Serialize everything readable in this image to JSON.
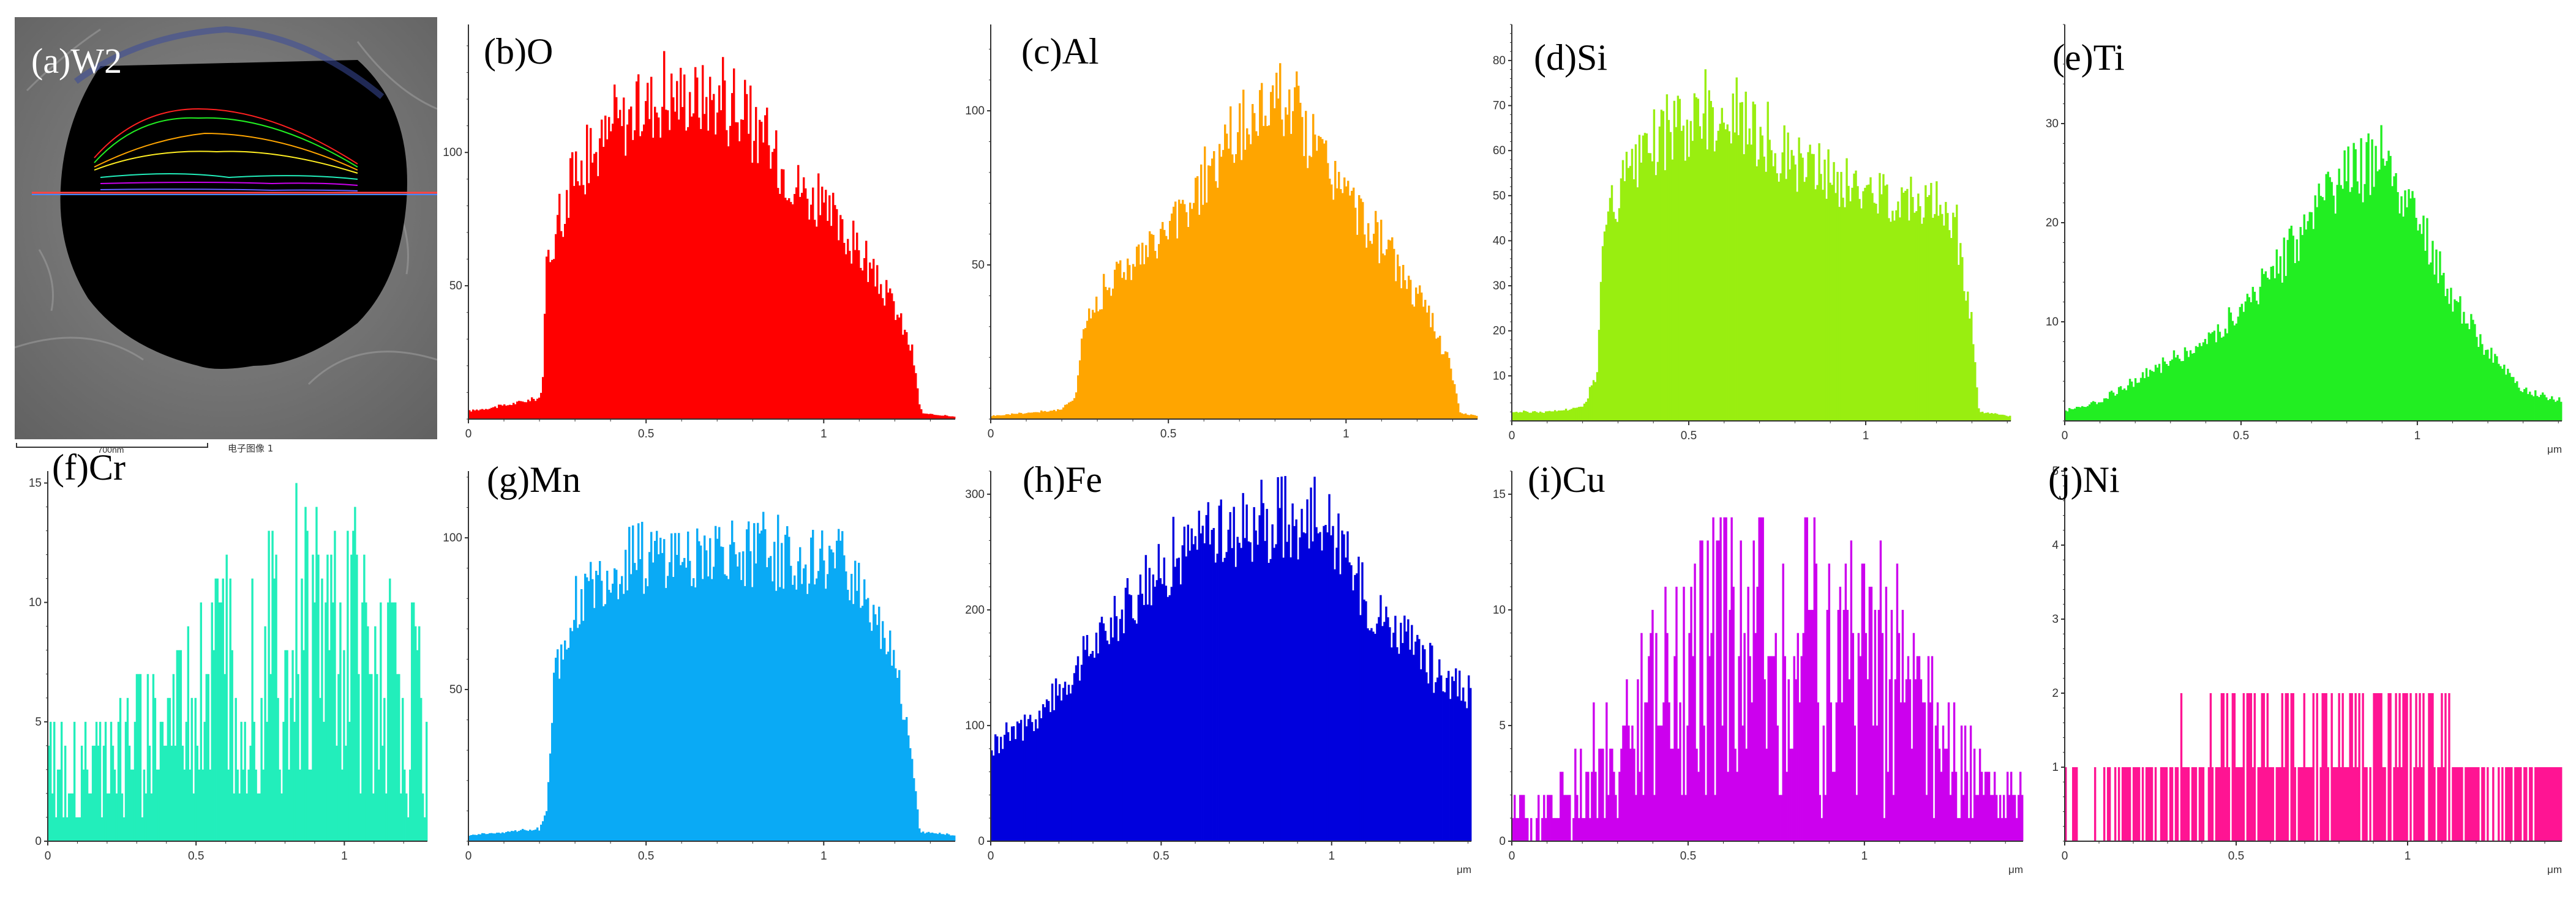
{
  "figure": {
    "sem_panel": {
      "label": "(a)W2",
      "scale_text": "700nm",
      "caption": "电子图像 1"
    }
  },
  "colors": {
    "O": "#ff0000",
    "Al": "#ffa500",
    "Si": "#99ee10",
    "Ti": "#22ee22",
    "Cr": "#22eebb",
    "Mn": "#0aaaf5",
    "Fe": "#0000dd",
    "Cu": "#cc00ee",
    "Ni": "#ff1493"
  },
  "chart_data": [
    {
      "id": "b",
      "label": "(b)O",
      "element": "O",
      "type": "bar",
      "x_unit": "",
      "xlim": [
        0,
        1.37
      ],
      "ylim": [
        0,
        148
      ],
      "x_ticks": [
        0,
        0.5,
        1
      ],
      "y_ticks": [
        50,
        100
      ],
      "x": [
        0,
        0.1,
        0.2,
        0.21,
        0.22,
        0.3,
        0.4,
        0.5,
        0.6,
        0.7,
        0.8,
        0.9,
        1.0,
        1.1,
        1.2,
        1.25,
        1.27,
        1.28,
        1.37
      ],
      "y": [
        3,
        5,
        8,
        15,
        60,
        90,
        108,
        118,
        122,
        120,
        108,
        92,
        78,
        62,
        42,
        25,
        5,
        2,
        1
      ]
    },
    {
      "id": "c",
      "label": "(c)Al",
      "element": "Al",
      "type": "bar",
      "x_unit": "",
      "xlim": [
        0,
        1.37
      ],
      "ylim": [
        0,
        128
      ],
      "x_ticks": [
        0,
        0.5,
        1
      ],
      "y_ticks": [
        50,
        100
      ],
      "x": [
        0,
        0.1,
        0.2,
        0.24,
        0.26,
        0.35,
        0.45,
        0.55,
        0.65,
        0.75,
        0.8,
        0.85,
        0.95,
        1.05,
        1.15,
        1.25,
        1.3,
        1.32,
        1.37
      ],
      "y": [
        1,
        2,
        3,
        8,
        30,
        47,
        55,
        68,
        85,
        98,
        108,
        100,
        82,
        64,
        48,
        30,
        14,
        2,
        1
      ]
    },
    {
      "id": "d",
      "label": "(d)Si",
      "element": "Si",
      "type": "bar",
      "x_unit": "",
      "xlim": [
        0,
        1.41
      ],
      "ylim": [
        0,
        88
      ],
      "x_ticks": [
        0,
        0.5,
        1
      ],
      "y_ticks": [
        10,
        20,
        30,
        40,
        50,
        60,
        70,
        80
      ],
      "x": [
        0,
        0.1,
        0.2,
        0.24,
        0.26,
        0.35,
        0.45,
        0.55,
        0.65,
        0.75,
        0.85,
        0.95,
        1.05,
        1.15,
        1.25,
        1.3,
        1.32,
        1.41
      ],
      "y": [
        2,
        2,
        3,
        10,
        42,
        56,
        64,
        68,
        66,
        60,
        56,
        52,
        50,
        50,
        45,
        22,
        2,
        1
      ]
    },
    {
      "id": "e",
      "label": "(e)Ti",
      "element": "Ti",
      "type": "bar",
      "x_unit": "μm",
      "xlim": [
        0,
        1.41
      ],
      "ylim": [
        0,
        40
      ],
      "x_ticks": [
        0,
        0.5,
        1
      ],
      "y_ticks": [
        10,
        20,
        30
      ],
      "x": [
        0,
        0.1,
        0.2,
        0.3,
        0.4,
        0.5,
        0.6,
        0.7,
        0.8,
        0.9,
        1.0,
        1.1,
        1.2,
        1.3,
        1.41
      ],
      "y": [
        1,
        2,
        4,
        6,
        8,
        11,
        15,
        20,
        24,
        26,
        20,
        12,
        7,
        3,
        2
      ]
    },
    {
      "id": "f",
      "label": "(f)Cr",
      "element": "Cr",
      "type": "bar",
      "x_unit": "",
      "xlim": [
        0,
        1.28
      ],
      "ylim": [
        0,
        15.5
      ],
      "x_ticks": [
        0,
        0.5,
        1
      ],
      "y_ticks": [
        0,
        5,
        10,
        15
      ],
      "x": [
        0,
        0.1,
        0.2,
        0.3,
        0.4,
        0.5,
        0.6,
        0.7,
        0.8,
        0.9,
        1.0,
        1.1,
        1.2,
        1.28
      ],
      "y": [
        2,
        2,
        2,
        3,
        3,
        4,
        5,
        5,
        6,
        6,
        6,
        5,
        4,
        4
      ]
    },
    {
      "id": "g",
      "label": "(g)Mn",
      "element": "Mn",
      "type": "bar",
      "x_unit": "",
      "xlim": [
        0,
        1.37
      ],
      "ylim": [
        0,
        122
      ],
      "x_ticks": [
        0,
        0.5,
        1
      ],
      "y_ticks": [
        50,
        100
      ],
      "x": [
        0,
        0.1,
        0.2,
        0.22,
        0.24,
        0.3,
        0.4,
        0.5,
        0.6,
        0.7,
        0.8,
        0.9,
        1.0,
        1.1,
        1.2,
        1.25,
        1.27,
        1.37
      ],
      "y": [
        2,
        3,
        4,
        10,
        50,
        78,
        88,
        92,
        94,
        96,
        95,
        93,
        92,
        86,
        62,
        25,
        3,
        2
      ]
    },
    {
      "id": "h",
      "label": "(h)Fe",
      "element": "Fe",
      "type": "bar",
      "x_unit": "μm",
      "xlim": [
        0,
        1.41
      ],
      "ylim": [
        0,
        320
      ],
      "x_ticks": [
        0,
        0.5,
        1
      ],
      "y_ticks": [
        0,
        100,
        200,
        300
      ],
      "x": [
        0,
        0.1,
        0.2,
        0.3,
        0.4,
        0.5,
        0.6,
        0.7,
        0.8,
        0.9,
        1.0,
        1.05,
        1.1,
        1.2,
        1.3,
        1.41
      ],
      "y": [
        82,
        98,
        132,
        170,
        205,
        235,
        260,
        268,
        272,
        276,
        272,
        240,
        210,
        182,
        145,
        128
      ]
    },
    {
      "id": "i",
      "label": "(i)Cu",
      "element": "Cu",
      "type": "bar",
      "x_unit": "μm",
      "xlim": [
        0,
        1.45
      ],
      "ylim": [
        0,
        16
      ],
      "x_ticks": [
        0,
        0.5,
        1
      ],
      "y_ticks": [
        0,
        5,
        10,
        15
      ],
      "x": [
        0,
        0.1,
        0.2,
        0.3,
        0.4,
        0.5,
        0.6,
        0.7,
        0.8,
        0.9,
        1.0,
        1.1,
        1.2,
        1.3,
        1.45
      ],
      "y": [
        1,
        1,
        2,
        3,
        4,
        5,
        6,
        6,
        6,
        6,
        6,
        5,
        3,
        2,
        1
      ]
    },
    {
      "id": "j",
      "label": "(j)Ni",
      "element": "Ni",
      "type": "bar",
      "x_unit": "μm",
      "xlim": [
        0,
        1.45
      ],
      "ylim": [
        0,
        5
      ],
      "x_ticks": [
        0,
        0.5,
        1
      ],
      "y_ticks": [
        1,
        2,
        3,
        4,
        5
      ],
      "x": [
        0,
        0.1,
        0.2,
        0.3,
        0.4,
        0.5,
        0.6,
        0.7,
        0.8,
        0.9,
        1.0,
        1.1,
        1.2,
        1.3,
        1.45
      ],
      "y": [
        0.3,
        0.4,
        0.5,
        0.6,
        0.7,
        0.8,
        0.9,
        0.95,
        0.95,
        0.9,
        0.8,
        0.7,
        0.6,
        0.5,
        0.4
      ]
    }
  ]
}
